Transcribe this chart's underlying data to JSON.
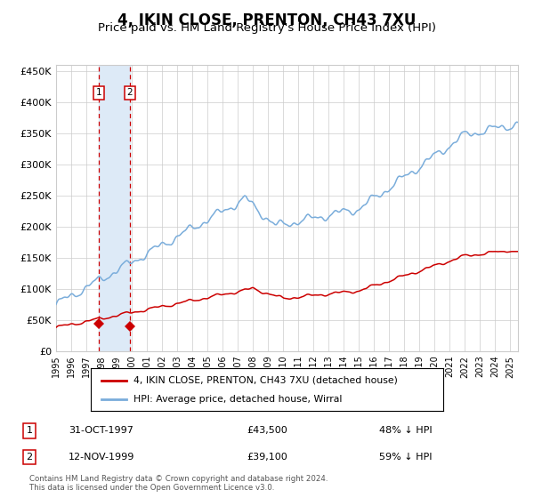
{
  "title": "4, IKIN CLOSE, PRENTON, CH43 7XU",
  "subtitle": "Price paid vs. HM Land Registry's House Price Index (HPI)",
  "title_fontsize": 12,
  "subtitle_fontsize": 9.5,
  "ylim": [
    0,
    460000
  ],
  "yticks": [
    0,
    50000,
    100000,
    150000,
    200000,
    250000,
    300000,
    350000,
    400000,
    450000
  ],
  "ytick_labels": [
    "£0",
    "£50K",
    "£100K",
    "£150K",
    "£200K",
    "£250K",
    "£300K",
    "£350K",
    "£400K",
    "£450K"
  ],
  "sale1_date": "31-OCT-1997",
  "sale1_price": 43500,
  "sale1_pct": "48% ↓ HPI",
  "sale1_x": 1997.83,
  "sale2_date": "12-NOV-1999",
  "sale2_price": 39100,
  "sale2_pct": "59% ↓ HPI",
  "sale2_x": 1999.87,
  "legend_label_red": "4, IKIN CLOSE, PRENTON, CH43 7XU (detached house)",
  "legend_label_blue": "HPI: Average price, detached house, Wirral",
  "footer": "Contains HM Land Registry data © Crown copyright and database right 2024.\nThis data is licensed under the Open Government Licence v3.0.",
  "hpi_color": "#7aaddb",
  "price_color": "#cc0000",
  "shade_color": "#ddeaf7",
  "grid_color": "#cccccc",
  "background_color": "#ffffff"
}
